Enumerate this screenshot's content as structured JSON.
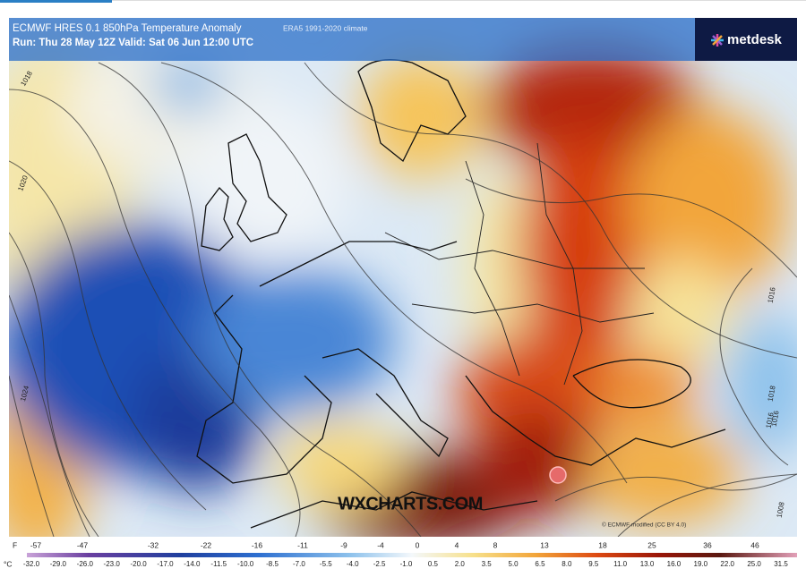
{
  "header": {
    "title": "ECMWF HRES 0.1 850hPa Temperature Anomaly",
    "climate": "ERA5 1991-2020 climate",
    "run": "Run: Thu 28 May 12Z Valid: Sat 06 Jun 12:00 UTC"
  },
  "logo": "metdesk",
  "watermark": "WXCHARTS.COM",
  "credit": "© ECMWF modified (CC BY 4.0)",
  "isobar_labels": [
    "1018",
    "1020",
    "1024",
    "1016",
    "1016",
    "1018",
    "1016",
    "1008"
  ],
  "legend": {
    "f_unit": "F",
    "f_values": [
      -57,
      -47,
      -32,
      -22,
      -16,
      -11,
      -9,
      -4,
      0,
      4,
      8,
      13,
      18,
      25,
      36,
      46
    ],
    "c_unit": "°C",
    "c_values": [
      "-32.0",
      "-29.0",
      "-26.0",
      "-23.0",
      "-20.0",
      "-17.0",
      "-14.0",
      "-11.5",
      "-10.0",
      "-8.5",
      "-7.0",
      "-5.5",
      "-4.0",
      "-2.5",
      "-1.0",
      "0.5",
      "2.0",
      "3.5",
      "5.0",
      "6.5",
      "8.0",
      "9.5",
      "11.0",
      "13.0",
      "16.0",
      "19.0",
      "22.0",
      "25.0",
      "31.5"
    ]
  }
}
